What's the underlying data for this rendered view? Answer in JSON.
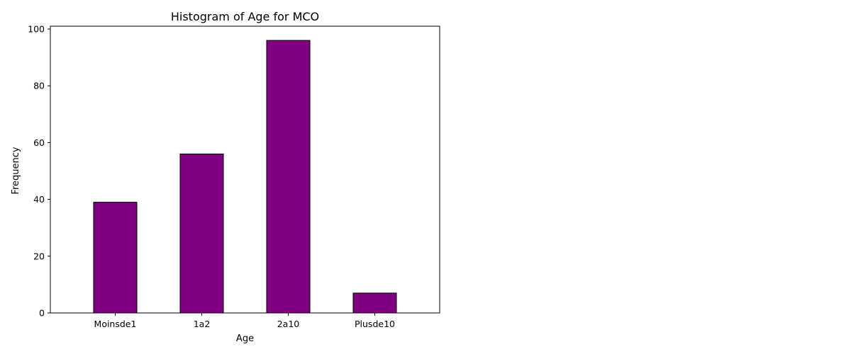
{
  "chart_data": {
    "type": "bar",
    "title": "Histogram of Age for MCO",
    "xlabel": "Age",
    "ylabel": "Frequency",
    "categories": [
      "Moinsde1",
      "1a2",
      "2a10",
      "Plusde10"
    ],
    "values": [
      39,
      56,
      96,
      7
    ],
    "ylim": [
      0,
      101
    ],
    "yticks": [
      0,
      20,
      40,
      60,
      80,
      100
    ],
    "grid": false,
    "legend": "none",
    "colors": {
      "bar_fill": "#800080",
      "bar_edge": "#000000",
      "axis": "#000000"
    }
  }
}
